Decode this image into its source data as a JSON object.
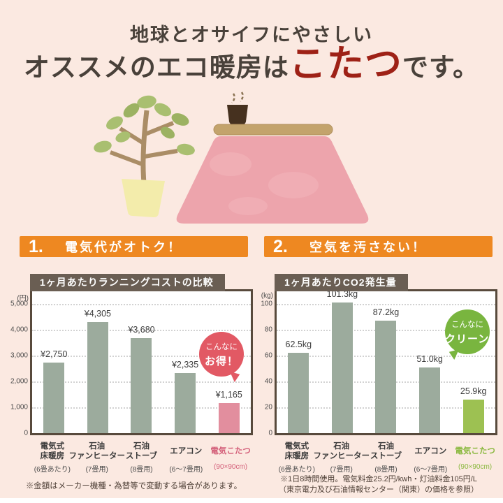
{
  "header": {
    "line1": "地球とオサイフにやさしい",
    "line2_prefix": "オススメのエコ暖房は",
    "line2_highlight": "こたつ",
    "line2_suffix": "です。"
  },
  "illustration": {
    "items": [
      "potted-plant",
      "kotatsu-with-pink-blanket",
      "teacup-with-steam"
    ]
  },
  "sections": [
    {
      "number": "1.",
      "title": "電気代がオトク！",
      "badge": {
        "line1": "こんなに",
        "line2": "お得！",
        "color": "#e25964"
      }
    },
    {
      "number": "2.",
      "title": "空気を汚さない！",
      "badge": {
        "line1": "こんなに",
        "line2": "クリーン！",
        "color": "#79b53f"
      }
    }
  ],
  "chart_data": [
    {
      "type": "bar",
      "title": "1ヶ月あたりランニングコストの比較",
      "unit_label": "(円)",
      "ylabel": "円",
      "ylim": [
        0,
        5500
      ],
      "yticks": [
        0,
        1000,
        2000,
        3000,
        4000,
        5000
      ],
      "ytick_labels": [
        "0",
        "1,000",
        "2,000",
        "3,000",
        "4,000",
        "5,000"
      ],
      "grid": "dotted-horizontal",
      "legend_position": "none",
      "categories": [
        {
          "lines": [
            "電気式",
            "床暖房"
          ],
          "sub": "(6畳あたり)",
          "highlight": false
        },
        {
          "lines": [
            "石油",
            "ファンヒーター"
          ],
          "sub": "(7畳用)",
          "highlight": false
        },
        {
          "lines": [
            "石油",
            "ストーブ"
          ],
          "sub": "(8畳用)",
          "highlight": false
        },
        {
          "lines": [
            "エアコン"
          ],
          "sub": "(6〜7畳用)",
          "highlight": false
        },
        {
          "lines": [
            "電気こたつ"
          ],
          "sub": "(90×90cm)",
          "highlight": true
        }
      ],
      "values": [
        2750,
        4305,
        3680,
        2335,
        1165
      ],
      "value_labels": [
        "¥2,750",
        "¥4,305",
        "¥3,680",
        "¥2,335",
        "¥1,165"
      ],
      "bar_color": "#9cab9d",
      "highlight_bar_color": "#e28e9e",
      "highlight_text_color": "#d4607a"
    },
    {
      "type": "bar",
      "title": "1ヶ月あたりCO2発生量",
      "unit_label": "(kg)",
      "ylabel": "kg",
      "ylim": [
        0,
        110
      ],
      "yticks": [
        0,
        20,
        40,
        60,
        80,
        100
      ],
      "ytick_labels": [
        "0",
        "20",
        "40",
        "60",
        "80",
        "100"
      ],
      "grid": "dotted-horizontal",
      "legend_position": "none",
      "categories": [
        {
          "lines": [
            "電気式",
            "床暖房"
          ],
          "sub": "(6畳あたり)",
          "highlight": false
        },
        {
          "lines": [
            "石油",
            "ファンヒーター"
          ],
          "sub": "(7畳用)",
          "highlight": false
        },
        {
          "lines": [
            "石油",
            "ストーブ"
          ],
          "sub": "(8畳用)",
          "highlight": false
        },
        {
          "lines": [
            "エアコン"
          ],
          "sub": "(6〜7畳用)",
          "highlight": false
        },
        {
          "lines": [
            "電気こたつ"
          ],
          "sub": "(90×90cm)",
          "highlight": true
        }
      ],
      "values": [
        62.5,
        101.3,
        87.2,
        51.0,
        25.9
      ],
      "value_labels": [
        "62.5kg",
        "101.3kg",
        "87.2kg",
        "51.0kg",
        "25.9kg"
      ],
      "bar_color": "#9cab9d",
      "highlight_bar_color": "#9dc152",
      "highlight_text_color": "#8ab83e"
    }
  ],
  "notes": {
    "left": "※金額はメーカー機種・為替等で変動する場合があります。",
    "right_line1": "※1日8時間使用。電気料金25.2円/kwh・灯油料金105円/L",
    "right_line2": "（東京電力及び石油情報センター（関東）の価格を参照）"
  },
  "colors": {
    "background": "#fbe9e1",
    "header_text": "#49413a",
    "header_highlight": "#9e2116",
    "banner_orange": "#ee8821",
    "chart_title_bar": "#6a5e53",
    "chart_border": "#584a3c",
    "bar_gray_green": "#9cab9d",
    "bar_pink": "#e28e9e",
    "bar_green": "#9dc152",
    "badge_red": "#e25964",
    "badge_green": "#79b53f"
  }
}
